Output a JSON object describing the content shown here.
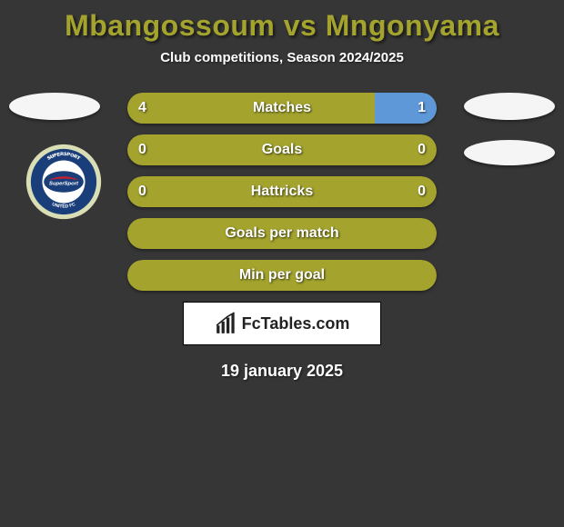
{
  "title": {
    "text": "Mbangossoum vs Mngonyama",
    "color": "#a3a32e",
    "fontsize": 32
  },
  "subtitle": {
    "text": "Club competitions, Season 2024/2025",
    "color": "#ffffff",
    "fontsize": 15
  },
  "date": {
    "text": "19 january 2025",
    "fontsize": 18
  },
  "footer_logo": {
    "brand_a": "Fc",
    "brand_b": "Tables",
    "brand_c": ".com"
  },
  "left_club": {
    "name": "SuperSport United FC",
    "logo_colors": {
      "outer": "#d9deb5",
      "ring": "#1a3e7a",
      "center": "#ffffff",
      "accent": "#c02030",
      "text": "#ffffff"
    }
  },
  "bar_style": {
    "color_left": "#a3a32e",
    "color_right": "#5e98d9",
    "color_empty": "#a3a32e",
    "height": 34,
    "radius": 17,
    "label_fontsize": 16,
    "value_fontsize": 16,
    "text_color": "#ffffff"
  },
  "bars": [
    {
      "label": "Matches",
      "left_value": "4",
      "right_value": "1",
      "left_pct": 80,
      "right_pct": 20,
      "show_values": true
    },
    {
      "label": "Goals",
      "left_value": "0",
      "right_value": "0",
      "left_pct": 0,
      "right_pct": 0,
      "show_values": true
    },
    {
      "label": "Hattricks",
      "left_value": "0",
      "right_value": "0",
      "left_pct": 0,
      "right_pct": 0,
      "show_values": true
    },
    {
      "label": "Goals per match",
      "left_value": "",
      "right_value": "",
      "left_pct": 0,
      "right_pct": 0,
      "show_values": false
    },
    {
      "label": "Min per goal",
      "left_value": "",
      "right_value": "",
      "left_pct": 0,
      "right_pct": 0,
      "show_values": false
    }
  ]
}
